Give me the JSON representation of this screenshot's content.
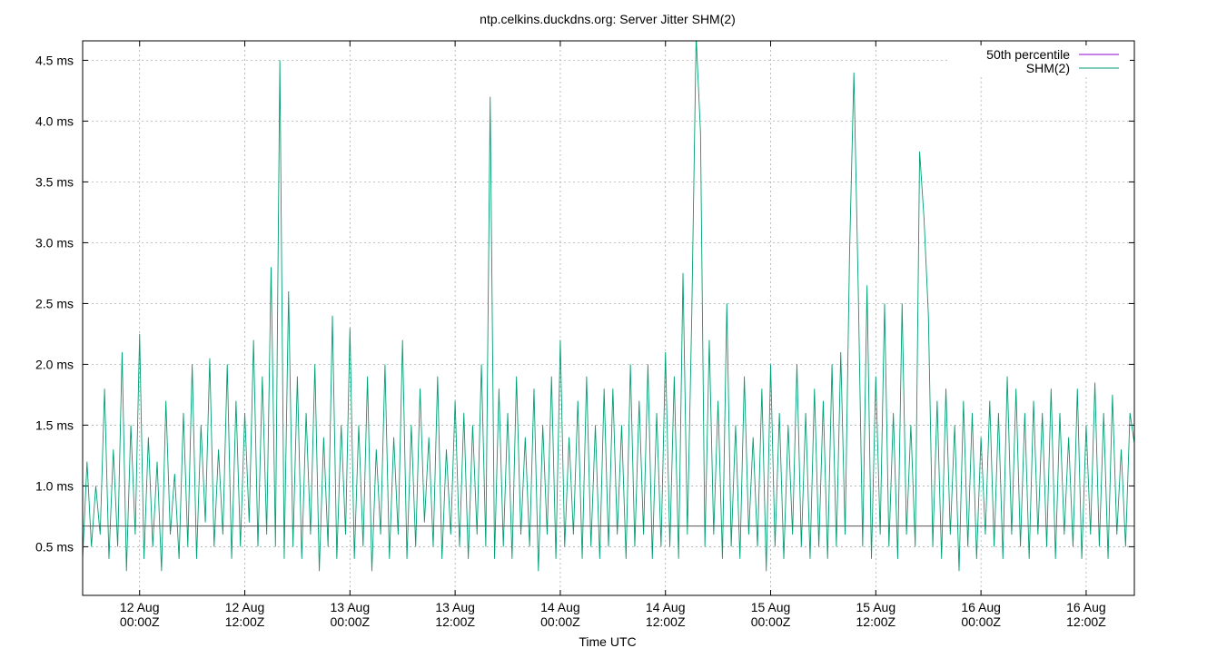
{
  "chart_data": {
    "type": "line",
    "title": "ntp.celkins.duckdns.org: Server Jitter SHM(2)",
    "x_label": "Time UTC",
    "xlim": [
      "11 17:30",
      "16 17:30"
    ],
    "xticks": [
      {
        "value": "12 00:00",
        "label": [
          "12 Aug",
          "00:00Z"
        ]
      },
      {
        "value": "12 12:00",
        "label": [
          "12 Aug",
          "12:00Z"
        ]
      },
      {
        "value": "13 00:00",
        "label": [
          "13 Aug",
          "00:00Z"
        ]
      },
      {
        "value": "13 12:00",
        "label": [
          "13 Aug",
          "12:00Z"
        ]
      },
      {
        "value": "14 00:00",
        "label": [
          "14 Aug",
          "00:00Z"
        ]
      },
      {
        "value": "14 12:00",
        "label": [
          "14 Aug",
          "12:00Z"
        ]
      },
      {
        "value": "15 00:00",
        "label": [
          "15 Aug",
          "00:00Z"
        ]
      },
      {
        "value": "15 12:00",
        "label": [
          "15 Aug",
          "12:00Z"
        ]
      },
      {
        "value": "16 00:00",
        "label": [
          "16 Aug",
          "00:00Z"
        ]
      },
      {
        "value": "16 12:00",
        "label": [
          "16 Aug",
          "12:00Z"
        ]
      }
    ],
    "ylim": [
      0.1,
      4.66
    ],
    "yticks": [
      {
        "value": 0.5,
        "label": "0.5 ms"
      },
      {
        "value": 1.0,
        "label": "1.0 ms"
      },
      {
        "value": 1.5,
        "label": "1.5 ms"
      },
      {
        "value": 2.0,
        "label": "2.0 ms"
      },
      {
        "value": 2.5,
        "label": "2.5 ms"
      },
      {
        "value": 3.0,
        "label": "3.0 ms"
      },
      {
        "value": 3.5,
        "label": "3.5 ms"
      },
      {
        "value": 4.0,
        "label": "4.0 ms"
      },
      {
        "value": 4.5,
        "label": "4.5 ms"
      }
    ],
    "grid": true,
    "legend": "top-right",
    "x": [
      "11 17:30",
      "11 18:00",
      "11 18:30",
      "11 19:00",
      "11 19:30",
      "11 20:00",
      "11 20:30",
      "11 21:00",
      "11 21:30",
      "11 22:00",
      "11 22:30",
      "11 23:00",
      "11 23:30",
      "12 00:00",
      "12 00:30",
      "12 01:00",
      "12 01:30",
      "12 02:00",
      "12 02:30",
      "12 03:00",
      "12 03:30",
      "12 04:00",
      "12 04:30",
      "12 05:00",
      "12 05:30",
      "12 06:00",
      "12 06:30",
      "12 07:00",
      "12 07:30",
      "12 08:00",
      "12 08:30",
      "12 09:00",
      "12 09:30",
      "12 10:00",
      "12 10:30",
      "12 11:00",
      "12 11:30",
      "12 12:00",
      "12 12:30",
      "12 13:00",
      "12 13:30",
      "12 14:00",
      "12 14:30",
      "12 15:00",
      "12 15:30",
      "12 16:00",
      "12 16:30",
      "12 17:00",
      "12 17:30",
      "12 18:00",
      "12 18:30",
      "12 19:00",
      "12 19:30",
      "12 20:00",
      "12 20:30",
      "12 21:00",
      "12 21:30",
      "12 22:00",
      "12 22:30",
      "12 23:00",
      "12 23:30",
      "13 00:00",
      "13 00:30",
      "13 01:00",
      "13 01:30",
      "13 02:00",
      "13 02:30",
      "13 03:00",
      "13 03:30",
      "13 04:00",
      "13 04:30",
      "13 05:00",
      "13 05:30",
      "13 06:00",
      "13 06:30",
      "13 07:00",
      "13 07:30",
      "13 08:00",
      "13 08:30",
      "13 09:00",
      "13 09:30",
      "13 10:00",
      "13 10:30",
      "13 11:00",
      "13 11:30",
      "13 12:00",
      "13 12:30",
      "13 13:00",
      "13 13:30",
      "13 14:00",
      "13 14:30",
      "13 15:00",
      "13 15:30",
      "13 16:00",
      "13 16:30",
      "13 17:00",
      "13 17:30",
      "13 18:00",
      "13 18:30",
      "13 19:00",
      "13 19:30",
      "13 20:00",
      "13 20:30",
      "13 21:00",
      "13 21:30",
      "13 22:00",
      "13 22:30",
      "13 23:00",
      "13 23:30",
      "14 00:00",
      "14 00:30",
      "14 01:00",
      "14 01:30",
      "14 02:00",
      "14 02:30",
      "14 03:00",
      "14 03:30",
      "14 04:00",
      "14 04:30",
      "14 05:00",
      "14 05:30",
      "14 06:00",
      "14 06:30",
      "14 07:00",
      "14 07:30",
      "14 08:00",
      "14 08:30",
      "14 09:00",
      "14 09:30",
      "14 10:00",
      "14 10:30",
      "14 11:00",
      "14 11:30",
      "14 12:00",
      "14 12:30",
      "14 13:00",
      "14 13:30",
      "14 14:00",
      "14 14:30",
      "14 15:00",
      "14 15:30",
      "14 16:00",
      "14 16:30",
      "14 17:00",
      "14 17:30",
      "14 18:00",
      "14 18:30",
      "14 19:00",
      "14 19:30",
      "14 20:00",
      "14 20:30",
      "14 21:00",
      "14 21:30",
      "14 22:00",
      "14 22:30",
      "14 23:00",
      "14 23:30",
      "15 00:00",
      "15 00:30",
      "15 01:00",
      "15 01:30",
      "15 02:00",
      "15 02:30",
      "15 03:00",
      "15 03:30",
      "15 04:00",
      "15 04:30",
      "15 05:00",
      "15 05:30",
      "15 06:00",
      "15 06:30",
      "15 07:00",
      "15 07:30",
      "15 08:00",
      "15 08:30",
      "15 09:00",
      "15 09:30",
      "15 10:00",
      "15 10:30",
      "15 11:00",
      "15 11:30",
      "15 12:00",
      "15 12:30",
      "15 13:00",
      "15 13:30",
      "15 14:00",
      "15 14:30",
      "15 15:00",
      "15 15:30",
      "15 16:00",
      "15 16:30",
      "15 17:00",
      "15 17:30",
      "15 18:00",
      "15 18:30",
      "15 19:00",
      "15 19:30",
      "15 20:00",
      "15 20:30",
      "15 21:00",
      "15 21:30",
      "15 22:00",
      "15 22:30",
      "15 23:00",
      "15 23:30",
      "16 00:00",
      "16 00:30",
      "16 01:00",
      "16 01:30",
      "16 02:00",
      "16 02:30",
      "16 03:00",
      "16 03:30",
      "16 04:00",
      "16 04:30",
      "16 05:00",
      "16 05:30",
      "16 06:00",
      "16 06:30",
      "16 07:00",
      "16 07:30",
      "16 08:00",
      "16 08:30",
      "16 09:00",
      "16 09:30",
      "16 10:00",
      "16 10:30",
      "16 11:00",
      "16 11:30",
      "16 12:00",
      "16 12:30",
      "16 13:00",
      "16 13:30",
      "16 14:00",
      "16 14:30",
      "16 15:00",
      "16 15:30",
      "16 16:00",
      "16 16:30",
      "16 17:00",
      "16 17:30"
    ],
    "series": [
      {
        "name": "50th percentile",
        "color": "#9400d3",
        "line_color": "#555555",
        "x": [
          "11 17:30",
          "16 17:30"
        ],
        "values": [
          0.67,
          0.67
        ]
      },
      {
        "name": "SHM(2)",
        "color": "#009e73",
        "values": [
          0.4,
          1.2,
          0.5,
          1.0,
          0.6,
          1.8,
          0.4,
          1.3,
          0.5,
          2.1,
          0.3,
          1.5,
          0.6,
          2.25,
          0.4,
          1.4,
          0.5,
          1.2,
          0.3,
          1.7,
          0.6,
          1.1,
          0.4,
          1.6,
          0.5,
          2.0,
          0.4,
          1.5,
          0.7,
          2.05,
          0.5,
          1.3,
          0.6,
          2.0,
          0.4,
          1.7,
          0.5,
          1.6,
          0.7,
          2.2,
          0.5,
          1.9,
          0.6,
          2.8,
          0.5,
          4.5,
          0.4,
          2.6,
          0.5,
          1.9,
          0.4,
          1.6,
          0.6,
          2.0,
          0.3,
          1.4,
          0.5,
          2.4,
          0.4,
          1.5,
          0.6,
          2.3,
          0.4,
          1.5,
          0.5,
          1.9,
          0.3,
          1.3,
          0.6,
          2.0,
          0.4,
          1.4,
          0.6,
          2.2,
          0.4,
          1.5,
          0.5,
          1.8,
          0.7,
          1.4,
          0.5,
          1.9,
          0.4,
          1.3,
          0.6,
          1.7,
          0.5,
          1.6,
          0.4,
          1.5,
          0.6,
          2.0,
          0.5,
          4.2,
          0.4,
          1.8,
          0.5,
          1.6,
          0.4,
          1.9,
          0.6,
          1.4,
          0.5,
          1.8,
          0.3,
          1.5,
          0.6,
          1.9,
          0.4,
          2.2,
          0.5,
          1.4,
          0.6,
          1.7,
          0.4,
          1.9,
          0.5,
          1.5,
          0.4,
          1.8,
          0.5,
          1.8,
          0.6,
          1.5,
          0.4,
          2.0,
          0.5,
          1.7,
          0.6,
          2.0,
          0.4,
          1.6,
          0.5,
          2.1,
          0.5,
          1.9,
          0.4,
          2.75,
          0.6,
          2.4,
          4.7,
          3.9,
          0.5,
          2.2,
          0.6,
          1.7,
          0.4,
          2.5,
          0.5,
          1.5,
          0.4,
          1.9,
          0.6,
          1.4,
          0.5,
          1.8,
          0.3,
          2.0,
          0.5,
          1.6,
          0.4,
          1.5,
          0.6,
          2.0,
          0.5,
          1.6,
          0.4,
          1.8,
          0.5,
          1.7,
          0.4,
          2.0,
          0.5,
          2.1,
          0.6,
          2.9,
          4.4,
          2.6,
          0.5,
          2.65,
          0.4,
          1.9,
          0.6,
          2.5,
          0.5,
          1.6,
          0.4,
          2.5,
          0.6,
          1.5,
          0.5,
          3.75,
          3.2,
          2.4,
          0.5,
          1.7,
          0.4,
          1.8,
          0.6,
          1.5,
          0.3,
          1.7,
          0.5,
          1.6,
          0.4,
          1.4,
          0.6,
          1.7,
          0.5,
          1.6,
          0.4,
          1.9,
          0.6,
          1.8,
          0.5,
          1.6,
          0.4,
          1.7,
          0.6,
          1.6,
          0.5,
          1.8,
          0.4,
          1.6,
          0.6,
          1.4,
          0.5,
          1.8,
          0.4,
          1.5,
          0.6,
          1.85,
          0.5,
          1.6,
          0.4,
          1.75,
          0.6,
          1.3,
          0.5,
          1.6,
          1.35
        ]
      }
    ]
  }
}
